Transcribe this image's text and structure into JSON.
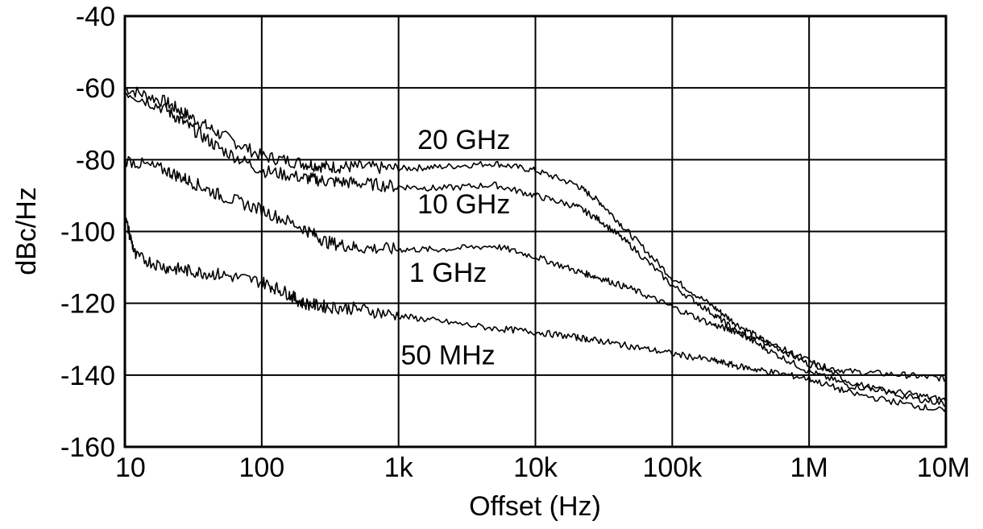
{
  "chart_data": {
    "type": "line",
    "xscale": "log",
    "xlim": [
      10,
      10000000
    ],
    "ylim": [
      -160,
      -40
    ],
    "grid": true,
    "xlabel": "Offset (Hz)",
    "ylabel": "dBc/Hz",
    "x_ticks": [
      {
        "value": 10,
        "label": "10"
      },
      {
        "value": 100,
        "label": "100"
      },
      {
        "value": 1000,
        "label": "1k"
      },
      {
        "value": 10000,
        "label": "10k"
      },
      {
        "value": 100000,
        "label": "100k"
      },
      {
        "value": 1000000,
        "label": "1M"
      },
      {
        "value": 10000000,
        "label": "10M"
      }
    ],
    "y_ticks": [
      {
        "value": -40,
        "label": "-40"
      },
      {
        "value": -60,
        "label": "-60"
      },
      {
        "value": -80,
        "label": "-80"
      },
      {
        "value": -100,
        "label": "-100"
      },
      {
        "value": -120,
        "label": "-120"
      },
      {
        "value": -140,
        "label": "-140"
      },
      {
        "value": -160,
        "label": "-160"
      }
    ],
    "series": [
      {
        "name": "20 GHz",
        "label_at": [
          3000,
          -77
        ],
        "x": [
          10,
          20,
          30,
          50,
          100,
          200,
          300,
          500,
          1000,
          2000,
          5000,
          10000,
          20000,
          30000,
          50000,
          100000,
          200000,
          300000,
          500000,
          1000000,
          2000000,
          5000000,
          10000000
        ],
        "y": [
          -60,
          -64,
          -68,
          -73,
          -79,
          -81,
          -82,
          -82,
          -82.5,
          -82,
          -81,
          -83,
          -87,
          -92,
          -101,
          -113,
          -121,
          -126,
          -131,
          -137,
          -139,
          -140,
          -141
        ]
      },
      {
        "name": "10 GHz",
        "label_at": [
          3000,
          -95
        ],
        "x": [
          10,
          20,
          30,
          50,
          100,
          200,
          300,
          500,
          1000,
          2000,
          5000,
          10000,
          20000,
          30000,
          50000,
          100000,
          200000,
          300000,
          500000,
          1000000,
          2000000,
          5000000,
          10000000
        ],
        "y": [
          -61,
          -66,
          -71,
          -77,
          -83,
          -85,
          -86,
          -86.5,
          -87.5,
          -88,
          -87,
          -90,
          -93,
          -97,
          -104,
          -115,
          -123,
          -128,
          -133,
          -139,
          -143,
          -145,
          -147
        ]
      },
      {
        "name": "1 GHz",
        "label_at": [
          2300,
          -114
        ],
        "x": [
          10,
          20,
          30,
          50,
          100,
          200,
          300,
          500,
          1000,
          2000,
          5000,
          10000,
          20000,
          30000,
          50000,
          100000,
          200000,
          300000,
          500000,
          1000000,
          2000000,
          5000000,
          10000000
        ],
        "y": [
          -80,
          -83,
          -86,
          -90,
          -94,
          -99,
          -103,
          -104.5,
          -105,
          -105,
          -104,
          -107,
          -111,
          -113,
          -116,
          -121,
          -126,
          -128,
          -131,
          -136,
          -142,
          -146,
          -148
        ]
      },
      {
        "name": "50 MHz",
        "label_at": [
          2300,
          -137
        ],
        "x": [
          10,
          12,
          20,
          30,
          50,
          100,
          150,
          200,
          300,
          500,
          1000,
          2000,
          5000,
          10000,
          20000,
          30000,
          50000,
          100000,
          200000,
          300000,
          500000,
          1000000,
          2000000,
          5000000,
          10000000
        ],
        "y": [
          -96,
          -107,
          -110,
          -111,
          -112,
          -114,
          -117,
          -120,
          -121,
          -121.5,
          -123.5,
          -125,
          -127,
          -128,
          -129.5,
          -130.5,
          -132,
          -134,
          -136,
          -137.5,
          -139,
          -141,
          -145,
          -148,
          -150
        ]
      }
    ]
  }
}
